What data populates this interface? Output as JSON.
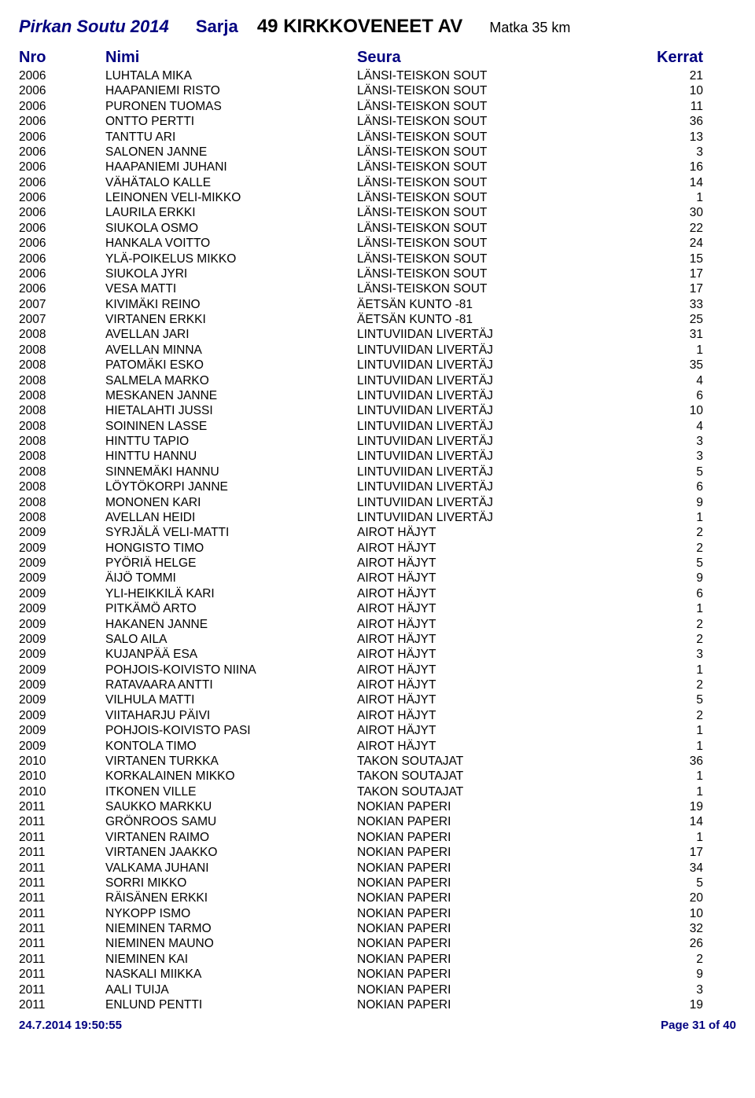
{
  "header": {
    "event_title": "Pirkan Soutu 2014",
    "sarja_label": "Sarja",
    "sarja_value": "49 KIRKKOVENEET AV",
    "matka": "Matka 35 km"
  },
  "columns": {
    "nro": "Nro",
    "nimi": "Nimi",
    "seura": "Seura",
    "kerrat": "Kerrat"
  },
  "rows": [
    {
      "nro": "2006",
      "nimi": "LUHTALA MIKA",
      "seura": "LÄNSI-TEISKON SOUT",
      "kerrat": "21"
    },
    {
      "nro": "2006",
      "nimi": "HAAPANIEMI RISTO",
      "seura": "LÄNSI-TEISKON SOUT",
      "kerrat": "10"
    },
    {
      "nro": "2006",
      "nimi": "PURONEN TUOMAS",
      "seura": "LÄNSI-TEISKON SOUT",
      "kerrat": "11"
    },
    {
      "nro": "2006",
      "nimi": "ONTTO PERTTI",
      "seura": "LÄNSI-TEISKON SOUT",
      "kerrat": "36"
    },
    {
      "nro": "2006",
      "nimi": "TANTTU ARI",
      "seura": "LÄNSI-TEISKON SOUT",
      "kerrat": "13"
    },
    {
      "nro": "2006",
      "nimi": "SALONEN JANNE",
      "seura": "LÄNSI-TEISKON SOUT",
      "kerrat": "3"
    },
    {
      "nro": "2006",
      "nimi": "HAAPANIEMI JUHANI",
      "seura": "LÄNSI-TEISKON SOUT",
      "kerrat": "16"
    },
    {
      "nro": "2006",
      "nimi": "VÄHÄTALO KALLE",
      "seura": "LÄNSI-TEISKON SOUT",
      "kerrat": "14"
    },
    {
      "nro": "2006",
      "nimi": "LEINONEN VELI-MIKKO",
      "seura": "LÄNSI-TEISKON SOUT",
      "kerrat": "1"
    },
    {
      "nro": "2006",
      "nimi": "LAURILA ERKKI",
      "seura": "LÄNSI-TEISKON SOUT",
      "kerrat": "30"
    },
    {
      "nro": "2006",
      "nimi": "SIUKOLA OSMO",
      "seura": "LÄNSI-TEISKON SOUT",
      "kerrat": "22"
    },
    {
      "nro": "2006",
      "nimi": "HANKALA VOITTO",
      "seura": "LÄNSI-TEISKON SOUT",
      "kerrat": "24"
    },
    {
      "nro": "2006",
      "nimi": "YLÄ-POIKELUS MIKKO",
      "seura": "LÄNSI-TEISKON SOUT",
      "kerrat": "15"
    },
    {
      "nro": "2006",
      "nimi": "SIUKOLA JYRI",
      "seura": "LÄNSI-TEISKON SOUT",
      "kerrat": "17"
    },
    {
      "nro": "2006",
      "nimi": "VESA MATTI",
      "seura": "LÄNSI-TEISKON SOUT",
      "kerrat": "17"
    },
    {
      "nro": "2007",
      "nimi": "KIVIMÄKI REINO",
      "seura": "ÄETSÄN KUNTO -81",
      "kerrat": "33"
    },
    {
      "nro": "2007",
      "nimi": "VIRTANEN ERKKI",
      "seura": "ÄETSÄN KUNTO -81",
      "kerrat": "25"
    },
    {
      "nro": "2008",
      "nimi": "AVELLAN JARI",
      "seura": "LINTUVIIDAN LIVERTÄJ",
      "kerrat": "31"
    },
    {
      "nro": "2008",
      "nimi": "AVELLAN MINNA",
      "seura": "LINTUVIIDAN LIVERTÄJ",
      "kerrat": "1"
    },
    {
      "nro": "2008",
      "nimi": "PATOMÄKI ESKO",
      "seura": "LINTUVIIDAN LIVERTÄJ",
      "kerrat": "35"
    },
    {
      "nro": "2008",
      "nimi": "SALMELA MARKO",
      "seura": "LINTUVIIDAN LIVERTÄJ",
      "kerrat": "4"
    },
    {
      "nro": "2008",
      "nimi": "MESKANEN JANNE",
      "seura": "LINTUVIIDAN LIVERTÄJ",
      "kerrat": "6"
    },
    {
      "nro": "2008",
      "nimi": "HIETALAHTI JUSSI",
      "seura": "LINTUVIIDAN LIVERTÄJ",
      "kerrat": "10"
    },
    {
      "nro": "2008",
      "nimi": "SOININEN LASSE",
      "seura": "LINTUVIIDAN LIVERTÄJ",
      "kerrat": "4"
    },
    {
      "nro": "2008",
      "nimi": "HINTTU TAPIO",
      "seura": "LINTUVIIDAN LIVERTÄJ",
      "kerrat": "3"
    },
    {
      "nro": "2008",
      "nimi": "HINTTU HANNU",
      "seura": "LINTUVIIDAN LIVERTÄJ",
      "kerrat": "3"
    },
    {
      "nro": "2008",
      "nimi": "SINNEMÄKI HANNU",
      "seura": "LINTUVIIDAN LIVERTÄJ",
      "kerrat": "5"
    },
    {
      "nro": "2008",
      "nimi": "LÖYTÖKORPI JANNE",
      "seura": "LINTUVIIDAN LIVERTÄJ",
      "kerrat": "6"
    },
    {
      "nro": "2008",
      "nimi": "MONONEN KARI",
      "seura": "LINTUVIIDAN LIVERTÄJ",
      "kerrat": "9"
    },
    {
      "nro": "2008",
      "nimi": "AVELLAN HEIDI",
      "seura": "LINTUVIIDAN LIVERTÄJ",
      "kerrat": "1"
    },
    {
      "nro": "2009",
      "nimi": "SYRJÄLÄ VELI-MATTI",
      "seura": "AIROT HÄJYT",
      "kerrat": "2"
    },
    {
      "nro": "2009",
      "nimi": "HONGISTO TIMO",
      "seura": "AIROT HÄJYT",
      "kerrat": "2"
    },
    {
      "nro": "2009",
      "nimi": "PYÖRIÄ HELGE",
      "seura": "AIROT HÄJYT",
      "kerrat": "5"
    },
    {
      "nro": "2009",
      "nimi": "ÄIJÖ TOMMI",
      "seura": "AIROT HÄJYT",
      "kerrat": "9"
    },
    {
      "nro": "2009",
      "nimi": "YLI-HEIKKILÄ KARI",
      "seura": "AIROT HÄJYT",
      "kerrat": "6"
    },
    {
      "nro": "2009",
      "nimi": "PITKÄMÖ ARTO",
      "seura": "AIROT HÄJYT",
      "kerrat": "1"
    },
    {
      "nro": "2009",
      "nimi": "HAKANEN JANNE",
      "seura": "AIROT HÄJYT",
      "kerrat": "2"
    },
    {
      "nro": "2009",
      "nimi": "SALO AILA",
      "seura": "AIROT HÄJYT",
      "kerrat": "2"
    },
    {
      "nro": "2009",
      "nimi": "KUJANPÄÄ ESA",
      "seura": "AIROT HÄJYT",
      "kerrat": "3"
    },
    {
      "nro": "2009",
      "nimi": "POHJOIS-KOIVISTO NIINA",
      "seura": "AIROT HÄJYT",
      "kerrat": "1"
    },
    {
      "nro": "2009",
      "nimi": "RATAVAARA ANTTI",
      "seura": "AIROT HÄJYT",
      "kerrat": "2"
    },
    {
      "nro": "2009",
      "nimi": "VILHULA MATTI",
      "seura": "AIROT HÄJYT",
      "kerrat": "5"
    },
    {
      "nro": "2009",
      "nimi": "VIITAHARJU PÄIVI",
      "seura": "AIROT HÄJYT",
      "kerrat": "2"
    },
    {
      "nro": "2009",
      "nimi": "POHJOIS-KOIVISTO PASI",
      "seura": "AIROT HÄJYT",
      "kerrat": "1"
    },
    {
      "nro": "2009",
      "nimi": "KONTOLA TIMO",
      "seura": "AIROT HÄJYT",
      "kerrat": "1"
    },
    {
      "nro": "2010",
      "nimi": "VIRTANEN TURKKA",
      "seura": "TAKON SOUTAJAT",
      "kerrat": "36"
    },
    {
      "nro": "2010",
      "nimi": "KORKALAINEN MIKKO",
      "seura": "TAKON SOUTAJAT",
      "kerrat": "1"
    },
    {
      "nro": "2010",
      "nimi": "ITKONEN VILLE",
      "seura": "TAKON SOUTAJAT",
      "kerrat": "1"
    },
    {
      "nro": "2011",
      "nimi": "SAUKKO MARKKU",
      "seura": "NOKIAN PAPERI",
      "kerrat": "19"
    },
    {
      "nro": "2011",
      "nimi": "GRÖNROOS SAMU",
      "seura": "NOKIAN PAPERI",
      "kerrat": "14"
    },
    {
      "nro": "2011",
      "nimi": "VIRTANEN RAIMO",
      "seura": "NOKIAN PAPERI",
      "kerrat": "1"
    },
    {
      "nro": "2011",
      "nimi": "VIRTANEN JAAKKO",
      "seura": "NOKIAN PAPERI",
      "kerrat": "17"
    },
    {
      "nro": "2011",
      "nimi": "VALKAMA JUHANI",
      "seura": "NOKIAN PAPERI",
      "kerrat": "34"
    },
    {
      "nro": "2011",
      "nimi": "SORRI MIKKO",
      "seura": "NOKIAN PAPERI",
      "kerrat": "5"
    },
    {
      "nro": "2011",
      "nimi": "RÄISÄNEN ERKKI",
      "seura": "NOKIAN PAPERI",
      "kerrat": "20"
    },
    {
      "nro": "2011",
      "nimi": "NYKOPP ISMO",
      "seura": "NOKIAN PAPERI",
      "kerrat": "10"
    },
    {
      "nro": "2011",
      "nimi": "NIEMINEN TARMO",
      "seura": "NOKIAN PAPERI",
      "kerrat": "32"
    },
    {
      "nro": "2011",
      "nimi": "NIEMINEN MAUNO",
      "seura": "NOKIAN PAPERI",
      "kerrat": "26"
    },
    {
      "nro": "2011",
      "nimi": "NIEMINEN KAI",
      "seura": "NOKIAN PAPERI",
      "kerrat": "2"
    },
    {
      "nro": "2011",
      "nimi": "NASKALI MIIKKA",
      "seura": "NOKIAN PAPERI",
      "kerrat": "9"
    },
    {
      "nro": "2011",
      "nimi": "AALI TUIJA",
      "seura": "NOKIAN PAPERI",
      "kerrat": "3"
    },
    {
      "nro": "2011",
      "nimi": "ENLUND PENTTI",
      "seura": "NOKIAN PAPERI",
      "kerrat": "19"
    }
  ],
  "footer": {
    "timestamp": "24.7.2014 19:50:55",
    "page": "Page 31 of 40"
  }
}
